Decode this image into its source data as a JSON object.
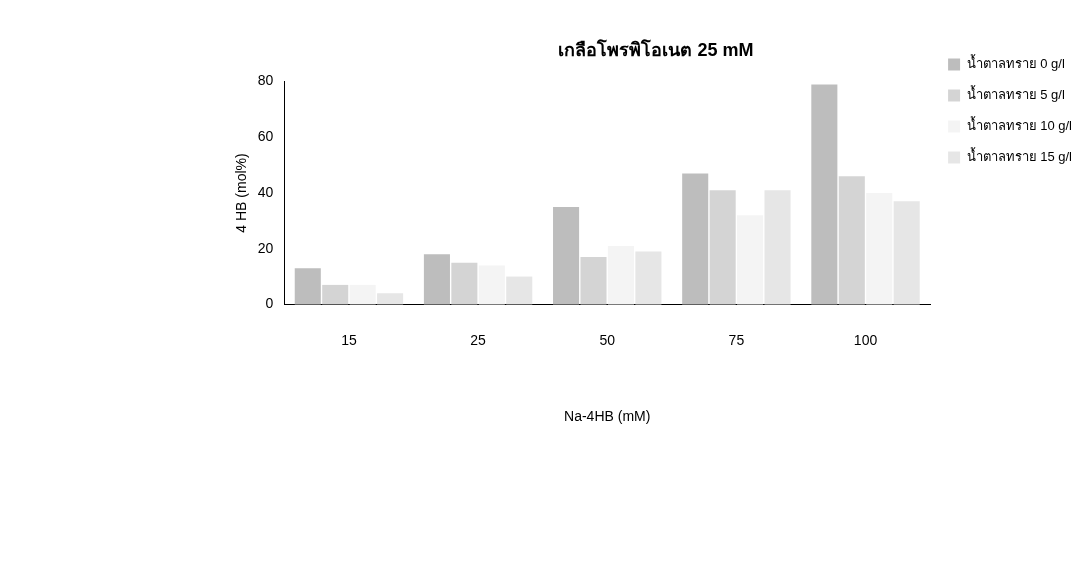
{
  "chart_data": {
    "type": "bar",
    "title": "เกลือโพรพิโอเนต 25 mM",
    "xlabel": "Na-4HB (mM)",
    "ylabel": "4 HB (mol%)",
    "categories": [
      "15",
      "25",
      "50",
      "75",
      "100"
    ],
    "series": [
      {
        "name": "น้ำตาลทราย 0 g/l",
        "color": "#bdbdbd",
        "values": [
          13,
          18,
          35,
          47,
          79
        ]
      },
      {
        "name": "น้ำตาลทราย 5 g/l",
        "color": "#d4d4d4",
        "values": [
          7,
          15,
          17,
          41,
          46
        ]
      },
      {
        "name": "น้ำตาลทราย 10 g/l",
        "color": "#f4f4f4",
        "values": [
          7,
          14,
          21,
          32,
          40
        ]
      },
      {
        "name": "น้ำตาลทราย 15 g/l",
        "color": "#e6e6e6",
        "values": [
          4,
          10,
          19,
          41,
          37
        ]
      }
    ],
    "ylim": [
      0,
      80
    ],
    "yticks": [
      0,
      20,
      40,
      60,
      80
    ],
    "grid": false,
    "legend": "top right"
  }
}
